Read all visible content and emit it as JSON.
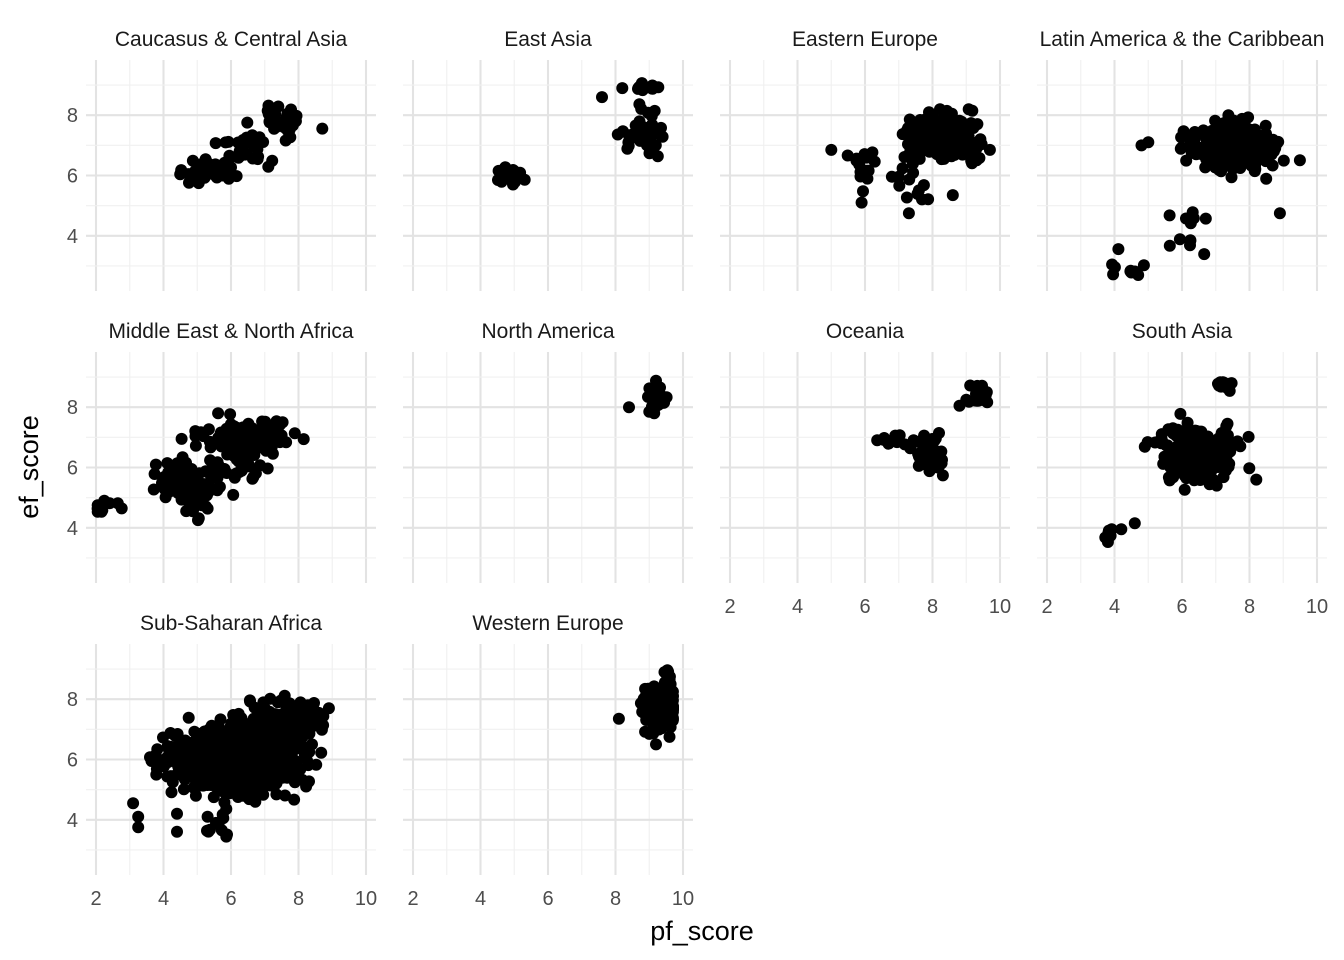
{
  "chart_data": {
    "type": "scatter",
    "layout": "facet_wrap",
    "ncol": 4,
    "xlabel": "pf_score",
    "ylabel": "ef_score",
    "xlim": [
      2,
      10
    ],
    "ylim": [
      2.5,
      9.5
    ],
    "x_ticks": [
      2,
      4,
      6,
      8,
      10
    ],
    "y_ticks": [
      4,
      6,
      8
    ],
    "grid": true,
    "point_color": "#000000",
    "panels": [
      {
        "name": "Caucasus & Central Asia",
        "clusters": [
          {
            "cx": 5.4,
            "cy": 6.1,
            "sx": 0.45,
            "sy": 0.18,
            "n": 40
          },
          {
            "cx": 6.4,
            "cy": 7.0,
            "sx": 0.4,
            "sy": 0.3,
            "n": 30
          },
          {
            "cx": 7.6,
            "cy": 7.8,
            "sx": 0.4,
            "sy": 0.25,
            "n": 30
          }
        ]
      },
      {
        "name": "East Asia",
        "clusters": [
          {
            "cx": 4.9,
            "cy": 6.0,
            "sx": 0.2,
            "sy": 0.22,
            "n": 15
          },
          {
            "cx": 8.8,
            "cy": 7.4,
            "sx": 0.35,
            "sy": 0.35,
            "n": 40
          },
          {
            "cx": 8.9,
            "cy": 8.95,
            "sx": 0.2,
            "sy": 0.07,
            "n": 15
          }
        ],
        "points": [
          [
            7.6,
            8.6
          ],
          [
            8.2,
            8.9
          ]
        ]
      },
      {
        "name": "Eastern Europe",
        "clusters": [
          {
            "cx": 8.3,
            "cy": 7.3,
            "sx": 0.55,
            "sy": 0.35,
            "n": 230
          },
          {
            "cx": 6.0,
            "cy": 6.2,
            "sx": 0.3,
            "sy": 0.35,
            "n": 15
          },
          {
            "cx": 7.4,
            "cy": 5.8,
            "sx": 0.35,
            "sy": 0.45,
            "n": 15
          }
        ],
        "points": [
          [
            5.0,
            6.85
          ],
          [
            5.9,
            5.1
          ],
          [
            7.3,
            4.75
          ],
          [
            8.6,
            5.35
          ]
        ]
      },
      {
        "name": "Latin America & the Caribbean",
        "clusters": [
          {
            "cx": 7.6,
            "cy": 7.0,
            "sx": 0.6,
            "sy": 0.35,
            "n": 350
          },
          {
            "cx": 6.2,
            "cy": 4.3,
            "sx": 0.25,
            "sy": 0.6,
            "n": 12
          },
          {
            "cx": 4.4,
            "cy": 2.95,
            "sx": 0.5,
            "sy": 0.2,
            "n": 10
          }
        ],
        "points": [
          [
            4.8,
            7.0
          ],
          [
            5.0,
            7.1
          ],
          [
            8.9,
            4.75
          ]
        ]
      },
      {
        "name": "Middle East & North Africa",
        "clusters": [
          {
            "cx": 6.5,
            "cy": 7.0,
            "sx": 0.75,
            "sy": 0.3,
            "n": 120
          },
          {
            "cx": 4.8,
            "cy": 5.6,
            "sx": 0.6,
            "sy": 0.4,
            "n": 90
          },
          {
            "cx": 6.4,
            "cy": 6.0,
            "sx": 0.3,
            "sy": 0.3,
            "n": 20
          },
          {
            "cx": 2.3,
            "cy": 4.7,
            "sx": 0.2,
            "sy": 0.2,
            "n": 12
          },
          {
            "cx": 5.1,
            "cy": 4.7,
            "sx": 0.2,
            "sy": 0.35,
            "n": 15
          }
        ]
      },
      {
        "name": "North America",
        "clusters": [
          {
            "cx": 9.2,
            "cy": 8.3,
            "sx": 0.15,
            "sy": 0.18,
            "n": 40
          }
        ],
        "points": [
          [
            8.4,
            8.0
          ],
          [
            9.0,
            7.85
          ]
        ]
      },
      {
        "name": "Oceania",
        "clusters": [
          {
            "cx": 9.4,
            "cy": 8.4,
            "sx": 0.12,
            "sy": 0.18,
            "n": 25
          },
          {
            "cx": 8.0,
            "cy": 6.4,
            "sx": 0.25,
            "sy": 0.35,
            "n": 35
          },
          {
            "cx": 6.8,
            "cy": 6.85,
            "sx": 0.25,
            "sy": 0.1,
            "n": 10
          }
        ],
        "points": [
          [
            8.8,
            8.05
          ],
          [
            9.0,
            8.25
          ]
        ]
      },
      {
        "name": "South Asia",
        "clusters": [
          {
            "cx": 6.5,
            "cy": 6.5,
            "sx": 0.65,
            "sy": 0.45,
            "n": 200
          },
          {
            "cx": 7.3,
            "cy": 8.75,
            "sx": 0.15,
            "sy": 0.08,
            "n": 15
          },
          {
            "cx": 3.8,
            "cy": 3.7,
            "sx": 0.08,
            "sy": 0.18,
            "n": 8
          }
        ],
        "points": [
          [
            4.2,
            3.95
          ],
          [
            4.6,
            4.15
          ],
          [
            8.2,
            5.6
          ]
        ]
      },
      {
        "name": "Sub-Saharan Africa",
        "clusters": [
          {
            "cx": 6.4,
            "cy": 6.0,
            "sx": 0.85,
            "sy": 0.55,
            "n": 700
          },
          {
            "cx": 7.6,
            "cy": 7.2,
            "sx": 0.55,
            "sy": 0.45,
            "n": 150
          },
          {
            "cx": 4.5,
            "cy": 6.0,
            "sx": 0.45,
            "sy": 0.4,
            "n": 50
          },
          {
            "cx": 5.7,
            "cy": 3.8,
            "sx": 0.2,
            "sy": 0.3,
            "n": 12
          }
        ],
        "points": [
          [
            3.1,
            4.55
          ],
          [
            3.25,
            4.1
          ],
          [
            3.25,
            3.75
          ],
          [
            4.4,
            4.2
          ],
          [
            4.4,
            3.6
          ],
          [
            8.9,
            7.7
          ],
          [
            8.4,
            6.5
          ]
        ]
      },
      {
        "name": "Western Europe",
        "clusters": [
          {
            "cx": 9.35,
            "cy": 7.7,
            "sx": 0.25,
            "sy": 0.35,
            "n": 180
          },
          {
            "cx": 9.55,
            "cy": 8.55,
            "sx": 0.06,
            "sy": 0.25,
            "n": 20
          }
        ],
        "points": [
          [
            8.1,
            7.35
          ],
          [
            9.2,
            6.5
          ],
          [
            9.0,
            6.85
          ],
          [
            9.6,
            6.75
          ]
        ]
      }
    ]
  }
}
